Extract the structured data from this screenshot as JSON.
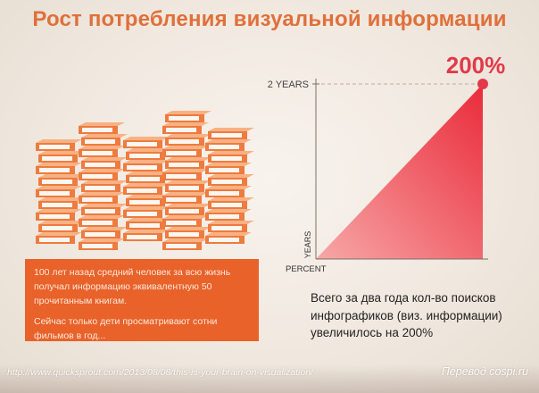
{
  "title": "Рост потребления визуальной информации",
  "textbox": {
    "line1": "100 лет назад средний человек за всю жизнь получал информацию эквивалентную 50 прочитанным книгам.",
    "line2": "Сейчас только дети просматривают сотни фильмов в год..."
  },
  "caption": "Всего за два года кол-во поисков инфографиков (виз. информации) увеличилось на 200%",
  "footer": {
    "url": "http://www.quicksprout.com/2013/08/08/this-is-your-brain-on-visualization/",
    "credit": "Перевод cospi.ru"
  },
  "colors": {
    "title": "#e0703a",
    "accent": "#e8622a",
    "triangle_light": "#f7a7a7",
    "triangle_dark": "#ea2b3a",
    "point": "#e23a4a",
    "book_top": "#f7b183",
    "book_side": "#ee7b3f",
    "pages": "#fbf6ef"
  },
  "chart_data": {
    "type": "area",
    "x": [
      "",
      "2 YEARS"
    ],
    "y": [
      0,
      200
    ],
    "point_label": "200%",
    "y_tick_top": "2 YEARS",
    "xlabel": "PERCENT",
    "ylabel": "YEARS",
    "ylim": [
      0,
      200
    ],
    "grid": false
  }
}
